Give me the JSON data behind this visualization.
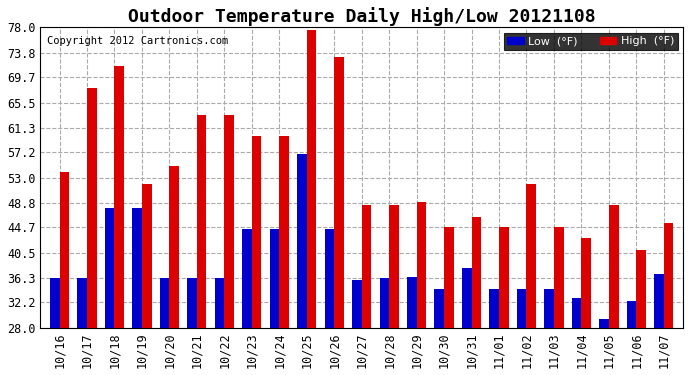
{
  "title": "Outdoor Temperature Daily High/Low 20121108",
  "copyright": "Copyright 2012 Cartronics.com",
  "legend_low": "Low  (°F)",
  "legend_high": "High  (°F)",
  "categories": [
    "10/16",
    "10/17",
    "10/18",
    "10/19",
    "10/20",
    "10/21",
    "10/22",
    "10/23",
    "10/24",
    "10/25",
    "10/26",
    "10/27",
    "10/28",
    "10/29",
    "10/30",
    "10/31",
    "11/01",
    "11/02",
    "11/03",
    "11/04",
    "11/05",
    "11/06",
    "11/07"
  ],
  "high": [
    54.0,
    68.0,
    71.5,
    52.0,
    55.0,
    63.5,
    63.5,
    60.0,
    60.0,
    77.5,
    73.0,
    48.5,
    48.5,
    49.0,
    44.7,
    46.5,
    44.7,
    52.0,
    44.7,
    43.0,
    48.5,
    41.0,
    45.5
  ],
  "low": [
    36.3,
    36.3,
    48.0,
    48.0,
    36.3,
    36.3,
    36.3,
    44.5,
    44.5,
    57.0,
    44.5,
    36.0,
    36.3,
    36.5,
    34.5,
    38.0,
    34.5,
    34.5,
    34.5,
    33.0,
    29.5,
    32.5,
    37.0
  ],
  "yticks": [
    28.0,
    32.2,
    36.3,
    40.5,
    44.7,
    48.8,
    53.0,
    57.2,
    61.3,
    65.5,
    69.7,
    73.8,
    78.0
  ],
  "ymin": 28.0,
  "ymax": 78.0,
  "bar_width": 0.35,
  "high_color": "#dd0000",
  "low_color": "#0000cc",
  "bg_color": "#ffffff",
  "grid_color": "#aaaaaa",
  "title_fontsize": 13,
  "tick_fontsize": 8.5,
  "copyright_fontsize": 7.5
}
